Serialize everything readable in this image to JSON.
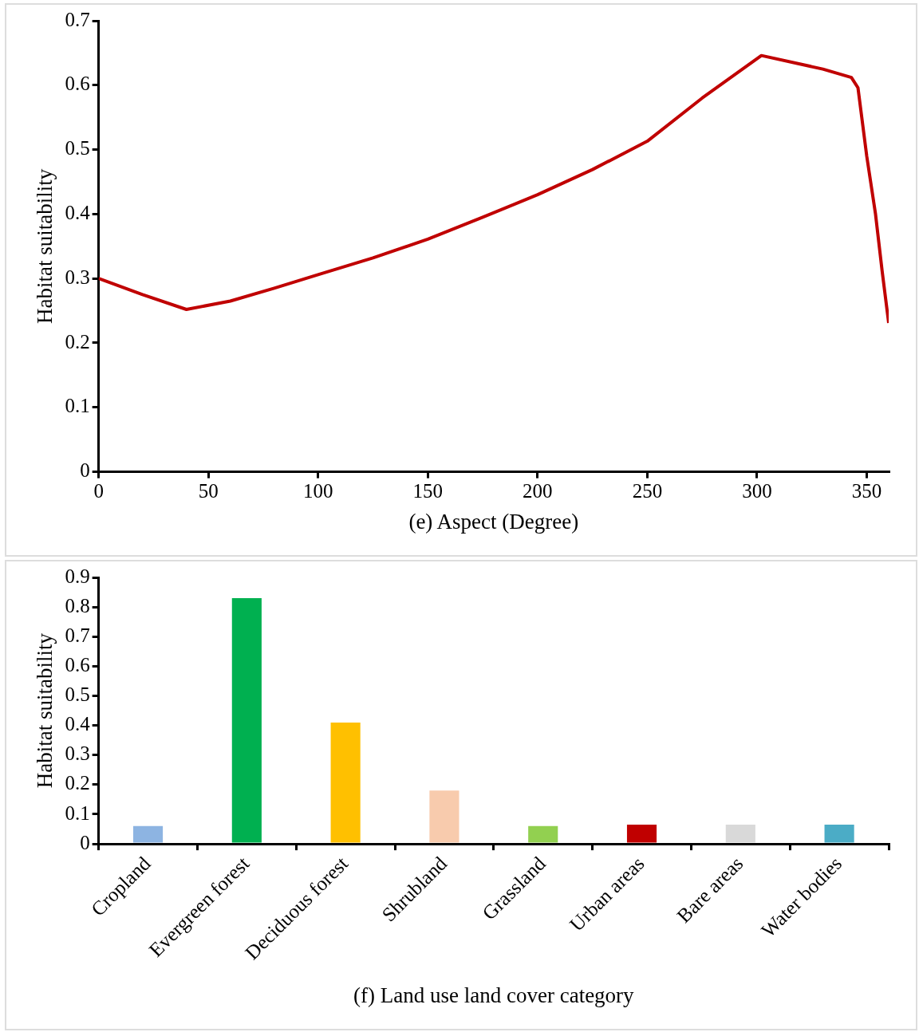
{
  "chart_data": [
    {
      "type": "line",
      "xlabel": "(e) Aspect (Degree)",
      "ylabel": "Habitat suitability",
      "xlim": [
        0,
        360
      ],
      "xticks": [
        0,
        50,
        100,
        150,
        200,
        250,
        300,
        350
      ],
      "ylim": [
        0,
        0.7
      ],
      "yticks": [
        0,
        0.1,
        0.2,
        0.3,
        0.4,
        0.5,
        0.6,
        0.7
      ],
      "grid": false,
      "legend": false,
      "marker": "none",
      "line_style": "solid",
      "series": [
        {
          "color": "#c00000",
          "x": [
            0,
            20,
            40,
            60,
            80,
            100,
            125,
            150,
            175,
            200,
            225,
            250,
            275,
            302,
            330,
            343,
            346,
            350,
            354,
            357,
            360
          ],
          "values": [
            0.3,
            0.275,
            0.252,
            0.265,
            0.285,
            0.306,
            0.332,
            0.361,
            0.395,
            0.43,
            0.469,
            0.513,
            0.58,
            0.646,
            0.625,
            0.612,
            0.596,
            0.49,
            0.4,
            0.312,
            0.231
          ]
        }
      ]
    },
    {
      "type": "bar",
      "xlabel": "(f) Land use land cover category",
      "ylabel": "Habitat suitability",
      "ylim": [
        0,
        0.9
      ],
      "yticks": [
        0,
        0.1,
        0.2,
        0.3,
        0.4,
        0.5,
        0.6,
        0.7,
        0.8,
        0.9
      ],
      "grid": false,
      "legend": false,
      "categories": [
        "Cropland",
        "Evergreen forest",
        "Deciduous forest",
        "Shrubland",
        "Grassland",
        "Urban areas",
        "Bare areas",
        "Water bodies"
      ],
      "values": [
        0.06,
        0.83,
        0.41,
        0.18,
        0.06,
        0.065,
        0.065,
        0.065
      ],
      "colors": [
        "#8db4e2",
        "#00b050",
        "#ffc000",
        "#f8cbad",
        "#92d050",
        "#c00000",
        "#d9d9d9",
        "#4bacc6"
      ]
    }
  ]
}
